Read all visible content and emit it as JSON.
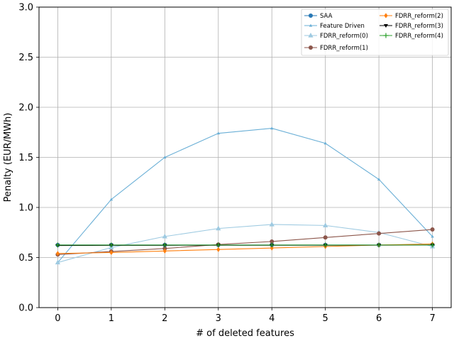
{
  "chart_data": {
    "type": "line",
    "title": "",
    "xlabel": "# of deleted features",
    "ylabel": "Penalty (EUR/MWh)",
    "x": [
      0,
      1,
      2,
      3,
      4,
      5,
      6,
      7
    ],
    "xlim": [
      -0.35,
      7.35
    ],
    "ylim": [
      0,
      3.0
    ],
    "xticks": [
      "0",
      "1",
      "2",
      "3",
      "4",
      "5",
      "6",
      "7"
    ],
    "yticks": [
      "0.0",
      "0.5",
      "1.0",
      "1.5",
      "2.0",
      "2.5",
      "3.0"
    ],
    "grid": true,
    "legend_position": "top-right",
    "legend_columns": 2,
    "series": [
      {
        "name": "SAA",
        "color": "#2878b5",
        "marker": "circle",
        "values": [
          0.625,
          0.625,
          0.625,
          0.625,
          0.625,
          0.625,
          0.625,
          0.625
        ]
      },
      {
        "name": "Feature Driven",
        "color": "#6aafd6",
        "marker": "tri_up_small",
        "values": [
          0.45,
          1.08,
          1.5,
          1.74,
          1.79,
          1.64,
          1.28,
          0.71
        ]
      },
      {
        "name": "FDRR_reform(0)",
        "color": "#9ecae1",
        "marker": "triangle",
        "values": [
          0.45,
          0.6,
          0.71,
          0.79,
          0.83,
          0.82,
          0.75,
          0.61
        ]
      },
      {
        "name": "FDRR_reform(1)",
        "color": "#8c564b",
        "marker": "circle",
        "values": [
          0.53,
          0.56,
          0.59,
          0.63,
          0.66,
          0.7,
          0.74,
          0.78
        ]
      },
      {
        "name": "FDRR_reform(2)",
        "color": "#ff7f0e",
        "marker": "diamond",
        "values": [
          0.54,
          0.55,
          0.565,
          0.58,
          0.595,
          0.61,
          0.625,
          0.635
        ]
      },
      {
        "name": "FDRR_reform(3)",
        "color": "#000000",
        "marker": "tri_down",
        "values": [
          0.62,
          0.622,
          0.622,
          0.623,
          0.623,
          0.623,
          0.624,
          0.625
        ]
      },
      {
        "name": "FDRR_reform(4)",
        "color": "#2ca02c",
        "marker": "plus",
        "values": [
          0.625,
          0.625,
          0.625,
          0.625,
          0.625,
          0.625,
          0.625,
          0.625
        ]
      }
    ]
  }
}
